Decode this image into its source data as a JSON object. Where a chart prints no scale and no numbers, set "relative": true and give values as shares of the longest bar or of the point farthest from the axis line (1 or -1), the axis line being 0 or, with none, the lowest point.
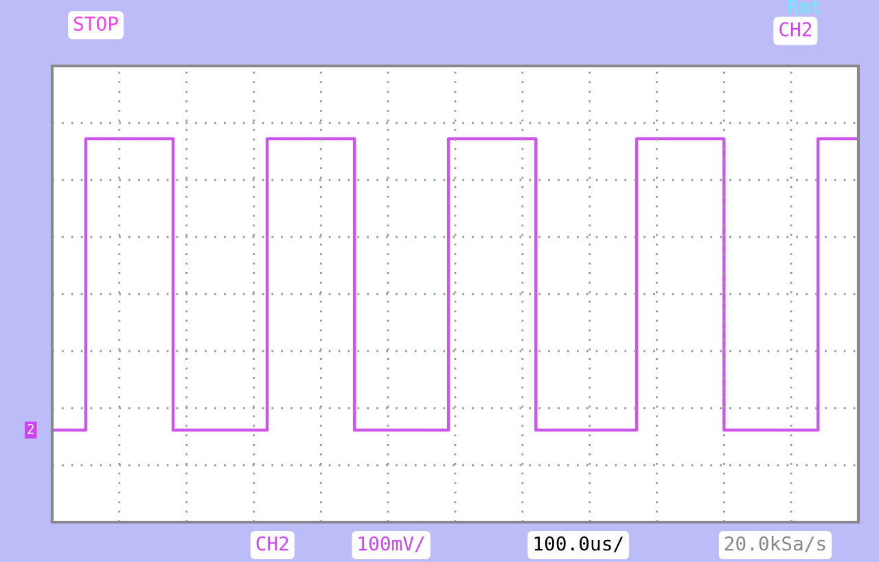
{
  "chart_data": {
    "type": "step",
    "relative": true,
    "grid": true,
    "line_style": "solid",
    "marker": "none",
    "categories": [
      null,
      null,
      null,
      null,
      null,
      null,
      null,
      null,
      null,
      null,
      null,
      null,
      null,
      null,
      null,
      null,
      null,
      null,
      null,
      null,
      null,
      null,
      null,
      null,
      null,
      null,
      null,
      null,
      null,
      null,
      null,
      null,
      null,
      null,
      null,
      null,
      null,
      null,
      null,
      null,
      null,
      null,
      null,
      null,
      null,
      null,
      null,
      null,
      null,
      null,
      null,
      null,
      null,
      null,
      null,
      null,
      null,
      null,
      null,
      null,
      null,
      null,
      null,
      null,
      null,
      null,
      null,
      null,
      null,
      null,
      null,
      null,
      null,
      null,
      null,
      null,
      null,
      null,
      null,
      null,
      null,
      null,
      null,
      null,
      null,
      null,
      null,
      null,
      null,
      null,
      null,
      null,
      null,
      null,
      null,
      null,
      null,
      null,
      null,
      null,
      null,
      null,
      null,
      null,
      null,
      null,
      null,
      null,
      null,
      null,
      null,
      null,
      null,
      null,
      null,
      null,
      null,
      null,
      null,
      null,
      null
    ],
    "series": [
      {
        "color": "#cc55ee",
        "values": [
          0.24,
          0.24,
          0.24,
          0.24,
          0.24,
          1,
          1,
          1,
          1,
          1,
          1,
          1,
          1,
          1,
          1,
          1,
          1,
          1,
          0.24,
          0.24,
          0.24,
          0.24,
          0.24,
          0.24,
          0.24,
          0.24,
          0.24,
          0.24,
          0.24,
          0.24,
          0.24,
          0.24,
          1,
          1,
          1,
          1,
          1,
          1,
          1,
          1,
          1,
          1,
          1,
          1,
          1,
          0.24,
          0.24,
          0.24,
          0.24,
          0.24,
          0.24,
          0.24,
          0.24,
          0.24,
          0.24,
          0.24,
          0.24,
          0.24,
          0.24,
          1,
          1,
          1,
          1,
          1,
          1,
          1,
          1,
          1,
          1,
          1,
          1,
          1,
          0.24,
          0.24,
          0.24,
          0.24,
          0.24,
          0.24,
          0.24,
          0.24,
          0.24,
          0.24,
          0.24,
          0.24,
          0.24,
          0.24,
          0.24,
          1,
          1,
          1,
          1,
          1,
          1,
          1,
          1,
          1,
          1,
          1,
          1,
          1,
          0.24,
          0.24,
          0.24,
          0.24,
          0.24,
          0.24,
          0.24,
          0.24,
          0.24,
          0.24,
          0.24,
          0.24,
          0.24,
          0.24,
          1,
          1,
          1,
          1,
          1,
          1,
          1
        ]
      }
    ],
    "annotations": [
      "STOP",
      "Rmt",
      "CH2",
      "CH2",
      "100mV/",
      "100.0us/",
      "20.0kSa/s",
      "2"
    ]
  }
}
